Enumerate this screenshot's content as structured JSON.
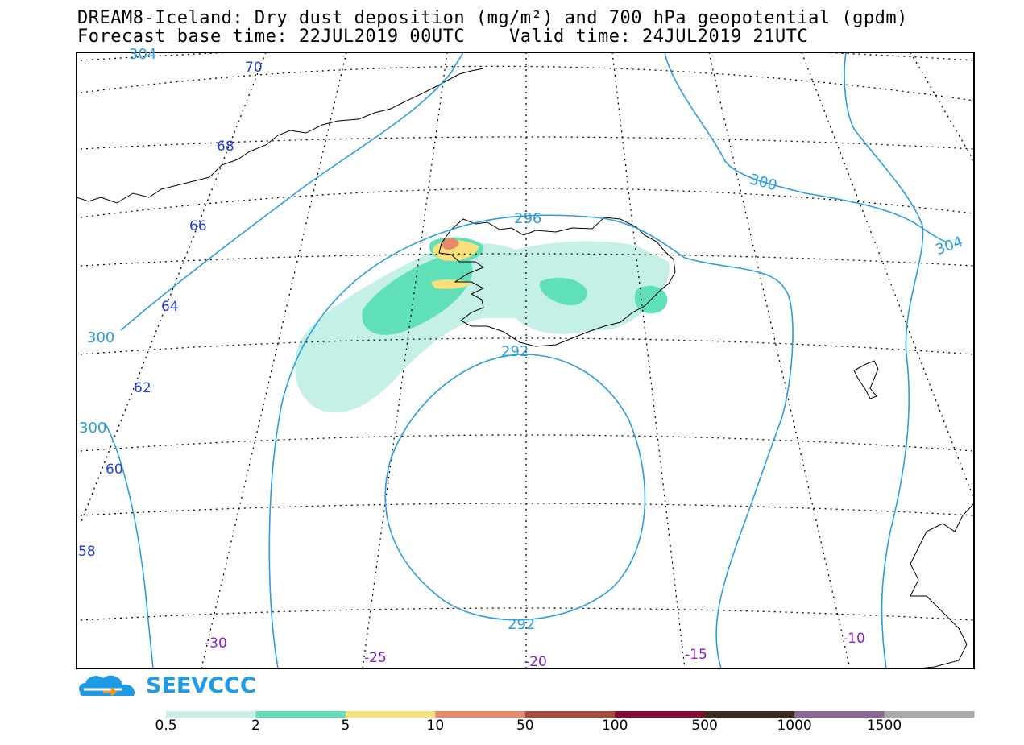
{
  "header": {
    "title_line1": "DREAM8-Iceland: Dry dust deposition (mg/m²) and 700 hPa geopotential (gpdm)",
    "title_line2": "Forecast base time: 22JUL2019 00UTC    Valid time: 24JUL2019 21UTC"
  },
  "map": {
    "region": "Iceland",
    "latitude_labels": [
      "70",
      "68",
      "66",
      "64",
      "62",
      "60",
      "58"
    ],
    "longitude_labels": [
      "-30",
      "-25",
      "-20",
      "-15",
      "-10"
    ],
    "geopotential_labels": [
      "304",
      "300",
      "300",
      "300",
      "304",
      "296",
      "292",
      "292"
    ],
    "colors": {
      "geopotential_contour": "#2c9de0",
      "latitude_label": "#1e3fd8",
      "longitude_label": "#8a1fc7",
      "coastline": "#000000"
    }
  },
  "legend": {
    "thresholds": [
      "0.5",
      "2",
      "5",
      "10",
      "50",
      "100",
      "500",
      "1000",
      "1500"
    ],
    "colors": [
      "#c4f0e7",
      "#5fe0b9",
      "#f9e07b",
      "#e8896a",
      "#a64a3c",
      "#8b0a32",
      "#3f2a1e",
      "#8a6795",
      "#aaaaaa"
    ]
  },
  "logo": {
    "text": "SEEVCCC",
    "icon": "cloud-arrow-icon"
  }
}
